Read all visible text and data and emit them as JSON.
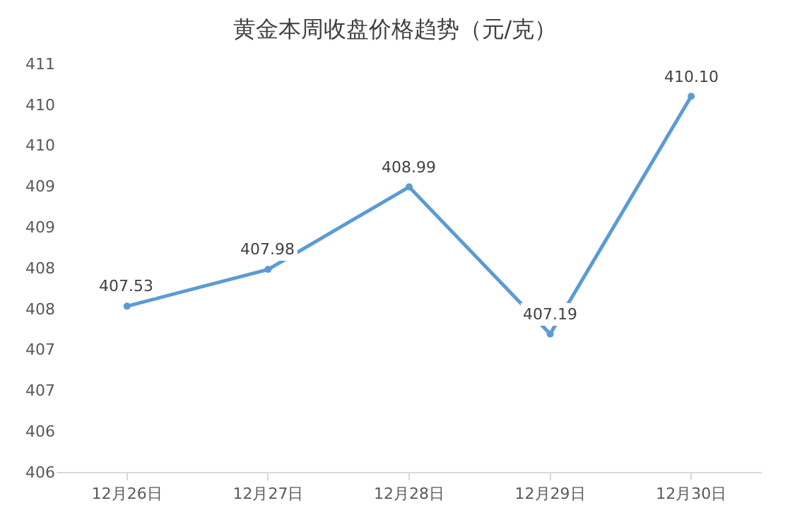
{
  "chart_data": {
    "type": "line",
    "title": "黄金本周收盘价格趋势（元/克）",
    "categories": [
      "12月26日",
      "12月27日",
      "12月28日",
      "12月29日",
      "12月30日"
    ],
    "series": [
      {
        "color": "#5b9bd5",
        "values": [
          407.53,
          407.98,
          408.99,
          407.19,
          410.1
        ],
        "value_labels": [
          "407.53",
          "407.98",
          "408.99",
          "407.19",
          "410.10"
        ]
      }
    ],
    "marker": "circle",
    "ylim": [
      405.5,
      410.5
    ],
    "yticks": [
      {
        "value": 405.5,
        "label": "406"
      },
      {
        "value": 406,
        "label": "406"
      },
      {
        "value": 406.5,
        "label": "407"
      },
      {
        "value": 407,
        "label": "407"
      },
      {
        "value": 407.5,
        "label": "408"
      },
      {
        "value": 408,
        "label": "408"
      },
      {
        "value": 408.5,
        "label": "409"
      },
      {
        "value": 409,
        "label": "409"
      },
      {
        "value": 409.5,
        "label": "410"
      },
      {
        "value": 410,
        "label": "410"
      },
      {
        "value": 410.5,
        "label": "411"
      }
    ]
  }
}
